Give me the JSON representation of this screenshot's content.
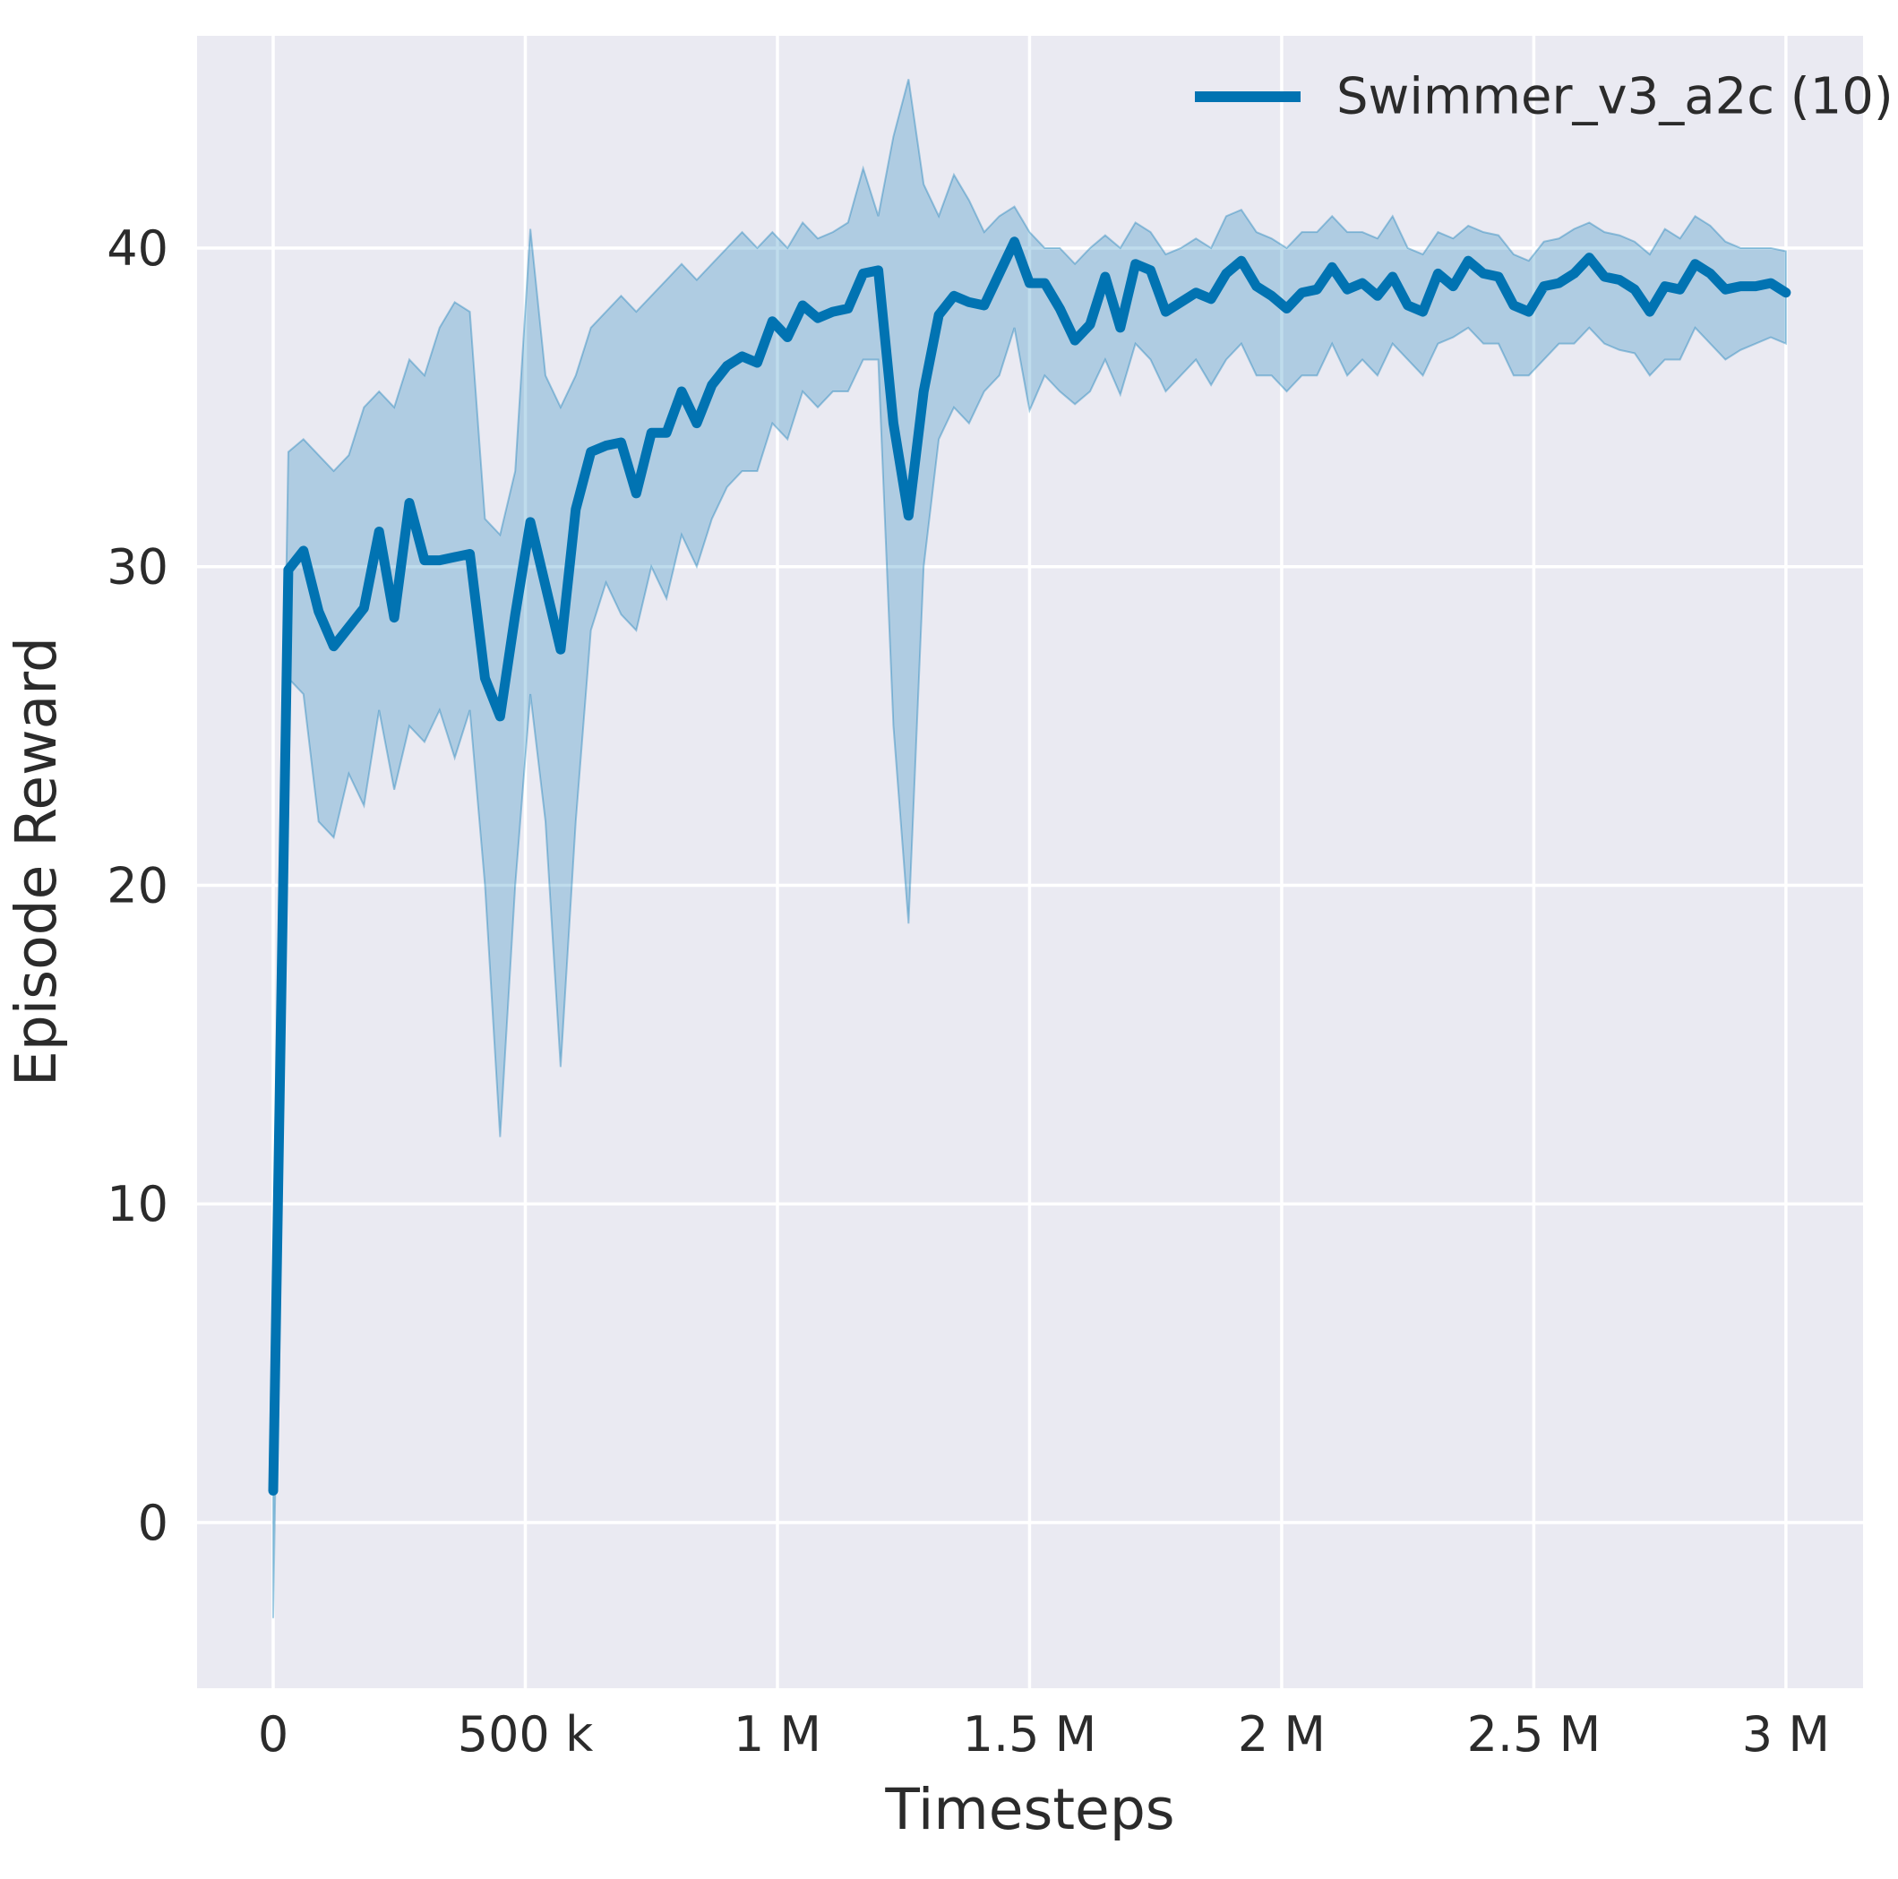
{
  "chart_data": {
    "type": "line",
    "title": "",
    "xlabel": "Timesteps",
    "ylabel": "Episode Reward",
    "grid": true,
    "legend": {
      "position": "upper right",
      "entries": [
        "Swimmer_v3_a2c (10)"
      ]
    },
    "colors": {
      "line": "#0173b2",
      "band_fill": "rgba(1,115,178,0.25)",
      "band_edge": "rgba(1,115,178,0.35)",
      "plot_background": "#eaeaf2",
      "gridline": "#ffffff",
      "text": "#2b2b2b"
    },
    "xlim": [
      -151000,
      3153000
    ],
    "ylim": [
      -5.2,
      46.66
    ],
    "x_ticks": [
      {
        "value": 0,
        "label": "0"
      },
      {
        "value": 500000,
        "label": "500 k"
      },
      {
        "value": 1000000,
        "label": "1 M"
      },
      {
        "value": 1500000,
        "label": "1.5 M"
      },
      {
        "value": 2000000,
        "label": "2 M"
      },
      {
        "value": 2500000,
        "label": "2.5 M"
      },
      {
        "value": 3000000,
        "label": "3 M"
      }
    ],
    "y_ticks": [
      {
        "value": 0,
        "label": "0"
      },
      {
        "value": 10,
        "label": "10"
      },
      {
        "value": 20,
        "label": "20"
      },
      {
        "value": 30,
        "label": "30"
      },
      {
        "value": 40,
        "label": "40"
      }
    ],
    "series": [
      {
        "name": "Swimmer_v3_a2c (10)",
        "x": [
          0,
          30000,
          60000,
          90000,
          120000,
          150000,
          180000,
          210000,
          240000,
          270000,
          300000,
          330000,
          360000,
          390000,
          420000,
          450000,
          480000,
          510000,
          540000,
          570000,
          600000,
          630000,
          660000,
          690000,
          720000,
          750000,
          780000,
          810000,
          840000,
          870000,
          900000,
          930000,
          960000,
          990000,
          1020000,
          1050000,
          1080000,
          1110000,
          1140000,
          1170000,
          1200000,
          1230000,
          1260000,
          1290000,
          1320000,
          1350000,
          1380000,
          1410000,
          1440000,
          1470000,
          1500000,
          1530000,
          1560000,
          1590000,
          1620000,
          1650000,
          1680000,
          1710000,
          1740000,
          1770000,
          1800000,
          1830000,
          1860000,
          1890000,
          1920000,
          1950000,
          1980000,
          2010000,
          2040000,
          2070000,
          2100000,
          2130000,
          2160000,
          2190000,
          2220000,
          2250000,
          2280000,
          2310000,
          2340000,
          2370000,
          2400000,
          2430000,
          2460000,
          2490000,
          2520000,
          2550000,
          2580000,
          2610000,
          2640000,
          2670000,
          2700000,
          2730000,
          2760000,
          2790000,
          2820000,
          2850000,
          2880000,
          2910000,
          2940000,
          2970000,
          3000000
        ],
        "mean": [
          1.0,
          29.9,
          30.5,
          28.6,
          27.5,
          28.1,
          28.7,
          31.1,
          28.4,
          32.0,
          30.2,
          30.2,
          30.3,
          30.4,
          26.5,
          25.3,
          28.5,
          31.4,
          29.4,
          27.4,
          31.8,
          33.6,
          33.8,
          33.9,
          32.3,
          34.2,
          34.2,
          35.5,
          34.5,
          35.7,
          36.3,
          36.6,
          36.4,
          37.7,
          37.2,
          38.2,
          37.8,
          38.0,
          38.1,
          39.2,
          39.3,
          34.5,
          31.6,
          35.5,
          37.9,
          38.5,
          38.3,
          38.2,
          39.2,
          40.2,
          38.9,
          38.9,
          38.1,
          37.1,
          37.6,
          39.1,
          37.5,
          39.5,
          39.3,
          38.0,
          38.3,
          38.6,
          38.4,
          39.2,
          39.6,
          38.8,
          38.5,
          38.1,
          38.6,
          38.7,
          39.4,
          38.7,
          38.9,
          38.5,
          39.1,
          38.2,
          38.0,
          39.2,
          38.8,
          39.6,
          39.2,
          39.1,
          38.2,
          38.0,
          38.8,
          38.9,
          39.2,
          39.7,
          39.1,
          39.0,
          38.7,
          38.0,
          38.8,
          38.7,
          39.5,
          39.2,
          38.7,
          38.8,
          38.8,
          38.9,
          38.6
        ],
        "band_lower": [
          -3.0,
          26.5,
          26.0,
          22.0,
          21.5,
          23.5,
          22.5,
          25.5,
          23.0,
          25.0,
          24.5,
          25.5,
          24.0,
          25.5,
          20.0,
          12.1,
          20.0,
          26.0,
          22.0,
          14.3,
          22.0,
          28.0,
          29.5,
          28.5,
          28.0,
          30.0,
          29.0,
          31.0,
          30.0,
          31.5,
          32.5,
          33.0,
          33.0,
          34.5,
          34.0,
          35.5,
          35.0,
          35.5,
          35.5,
          36.5,
          36.5,
          25.0,
          18.8,
          30.0,
          34.0,
          35.0,
          34.5,
          35.5,
          36.0,
          37.5,
          34.9,
          36.0,
          35.5,
          35.1,
          35.5,
          36.5,
          35.4,
          37.0,
          36.5,
          35.5,
          36.0,
          36.5,
          35.7,
          36.5,
          37.0,
          36.0,
          36.0,
          35.5,
          36.0,
          36.0,
          37.0,
          36.0,
          36.5,
          36.0,
          37.0,
          36.5,
          36.0,
          37.0,
          37.2,
          37.5,
          37.0,
          37.0,
          36.0,
          36.0,
          36.5,
          37.0,
          37.0,
          37.5,
          37.0,
          36.8,
          36.7,
          36.0,
          36.5,
          36.5,
          37.5,
          37.0,
          36.5,
          36.8,
          37.0,
          37.2,
          37.0
        ],
        "band_upper": [
          5.0,
          33.6,
          34.0,
          33.5,
          33.0,
          33.5,
          35.0,
          35.5,
          35.0,
          36.5,
          36.0,
          37.5,
          38.3,
          38.0,
          31.5,
          31.0,
          33.0,
          40.6,
          36.0,
          35.0,
          36.0,
          37.5,
          38.0,
          38.5,
          38.0,
          38.5,
          39.0,
          39.5,
          39.0,
          39.5,
          40.0,
          40.5,
          40.0,
          40.5,
          40.0,
          40.8,
          40.3,
          40.5,
          40.8,
          42.5,
          41.0,
          43.5,
          45.3,
          42.0,
          41.0,
          42.3,
          41.5,
          40.5,
          41.0,
          41.3,
          40.5,
          40.0,
          40.0,
          39.5,
          40.0,
          40.4,
          40.0,
          40.8,
          40.5,
          39.8,
          40.0,
          40.3,
          40.0,
          41.0,
          41.2,
          40.5,
          40.3,
          40.0,
          40.5,
          40.5,
          41.0,
          40.5,
          40.5,
          40.3,
          41.0,
          40.0,
          39.8,
          40.5,
          40.3,
          40.7,
          40.5,
          40.4,
          39.8,
          39.6,
          40.2,
          40.3,
          40.6,
          40.8,
          40.5,
          40.4,
          40.2,
          39.8,
          40.6,
          40.3,
          41.0,
          40.7,
          40.2,
          40.0,
          40.0,
          40.0,
          39.9
        ]
      }
    ]
  }
}
